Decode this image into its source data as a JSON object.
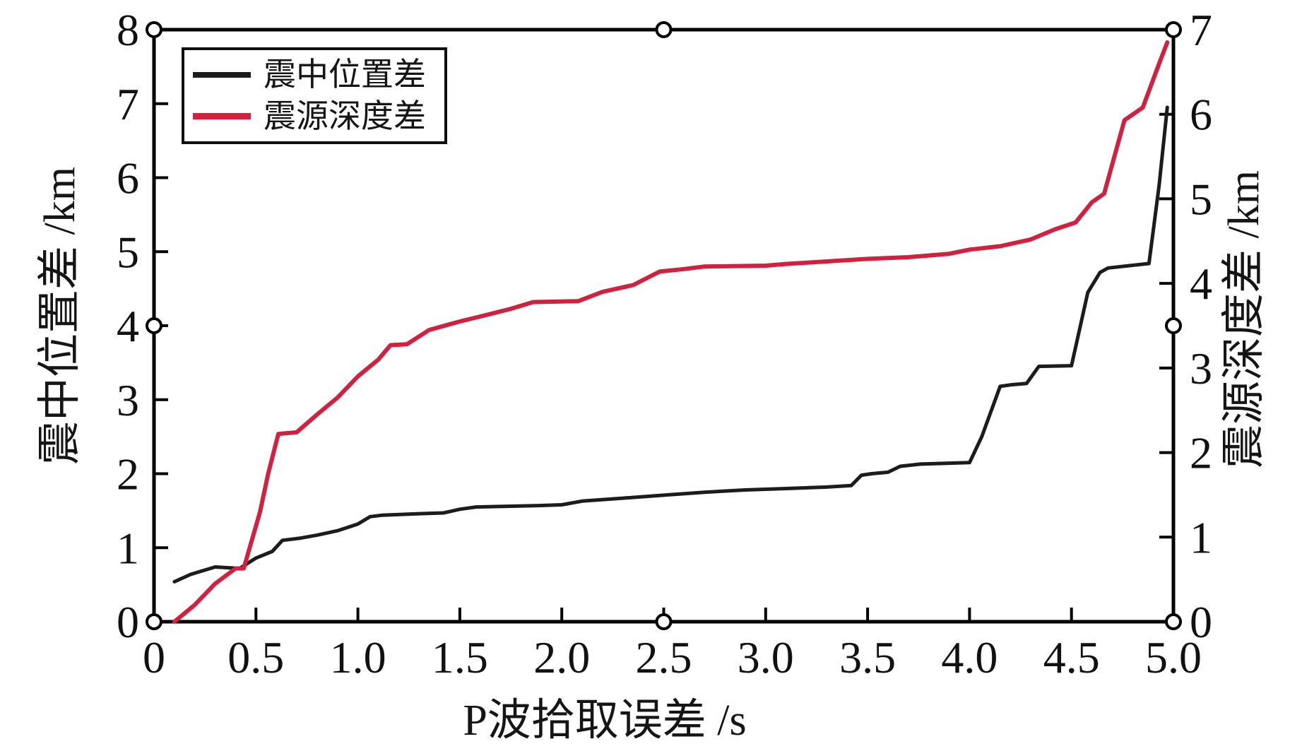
{
  "chart_data": {
    "type": "line",
    "title": "",
    "xlabel": "P波拾取误差 /s",
    "ylabel_left": "震中位置差 /km",
    "ylabel_right": "震源深度差 /km",
    "xlim": [
      0,
      5
    ],
    "ylim_left": [
      0,
      8
    ],
    "ylim_right": [
      0,
      7
    ],
    "grid": false,
    "background": "#ffffff",
    "frame_color": "#000000",
    "x_tick_values": [
      0,
      0.5,
      1.0,
      1.5,
      2.0,
      2.5,
      3.0,
      3.5,
      4.0,
      4.5,
      5.0
    ],
    "x_ticks": [
      "0",
      "0.5",
      "1.0",
      "1.5",
      "2.0",
      "2.5",
      "3.0",
      "3.5",
      "4.0",
      "4.5",
      "5.0"
    ],
    "left_tick_values": [
      0,
      1,
      2,
      3,
      4,
      5,
      6,
      7,
      8
    ],
    "left_ticks": [
      "0",
      "1",
      "2",
      "3",
      "4",
      "5",
      "6",
      "7",
      "8"
    ],
    "right_tick_values": [
      0,
      1,
      2,
      3,
      4,
      5,
      6,
      7
    ],
    "right_ticks": [
      "0",
      "1",
      "2",
      "3",
      "4",
      "5",
      "6",
      "7"
    ],
    "legend": {
      "position": "top-left",
      "border_color": "#101010",
      "entries": [
        {
          "label": "震中位置差",
          "color": "#1c1c1c"
        },
        {
          "label": "震源深度差",
          "color": "#d0213f"
        }
      ]
    },
    "series": [
      {
        "name": "震中位置差",
        "axis": "left",
        "color": "#1c1c1c",
        "width": 5,
        "x": [
          0.1,
          0.18,
          0.3,
          0.42,
          0.5,
          0.58,
          0.63,
          0.72,
          0.8,
          0.9,
          1.0,
          1.06,
          1.12,
          1.3,
          1.42,
          1.5,
          1.58,
          1.9,
          2.0,
          2.1,
          2.3,
          2.5,
          2.7,
          2.9,
          3.1,
          3.3,
          3.42,
          3.47,
          3.52,
          3.6,
          3.66,
          3.76,
          4.0,
          4.06,
          4.15,
          4.2,
          4.28,
          4.34,
          4.5,
          4.58,
          4.64,
          4.68,
          4.88,
          4.93,
          4.97
        ],
        "y": [
          0.54,
          0.64,
          0.74,
          0.72,
          0.86,
          0.95,
          1.1,
          1.13,
          1.17,
          1.23,
          1.32,
          1.42,
          1.44,
          1.46,
          1.47,
          1.52,
          1.55,
          1.57,
          1.58,
          1.63,
          1.67,
          1.71,
          1.75,
          1.78,
          1.8,
          1.82,
          1.84,
          1.98,
          2.0,
          2.02,
          2.1,
          2.13,
          2.15,
          2.5,
          3.18,
          3.2,
          3.22,
          3.45,
          3.46,
          4.45,
          4.72,
          4.78,
          4.84,
          5.9,
          6.95
        ]
      },
      {
        "name": "震源深度差",
        "axis": "right",
        "color": "#d0213f",
        "width": 6,
        "x": [
          0.1,
          0.2,
          0.3,
          0.4,
          0.44,
          0.52,
          0.56,
          0.61,
          0.7,
          0.8,
          0.9,
          1.0,
          1.1,
          1.16,
          1.24,
          1.35,
          1.5,
          1.62,
          1.75,
          1.86,
          2.08,
          2.2,
          2.35,
          2.48,
          2.6,
          2.7,
          3.0,
          3.1,
          3.3,
          3.5,
          3.7,
          3.9,
          4.0,
          4.15,
          4.3,
          4.42,
          4.52,
          4.6,
          4.66,
          4.76,
          4.85,
          4.93,
          4.97
        ],
        "y": [
          0.0,
          0.2,
          0.45,
          0.63,
          0.63,
          1.3,
          1.75,
          2.22,
          2.24,
          2.45,
          2.65,
          2.9,
          3.1,
          3.27,
          3.28,
          3.45,
          3.55,
          3.62,
          3.7,
          3.78,
          3.79,
          3.9,
          3.98,
          4.14,
          4.17,
          4.2,
          4.21,
          4.23,
          4.26,
          4.29,
          4.31,
          4.35,
          4.4,
          4.44,
          4.52,
          4.64,
          4.72,
          4.96,
          5.06,
          5.93,
          6.08,
          6.6,
          6.85
        ]
      }
    ],
    "frame_markers": {
      "shape": "open-circle",
      "positions": [
        "top-left",
        "top-center",
        "top-right",
        "left-middle",
        "right-middle",
        "bottom-left",
        "bottom-center",
        "bottom-right"
      ]
    }
  }
}
